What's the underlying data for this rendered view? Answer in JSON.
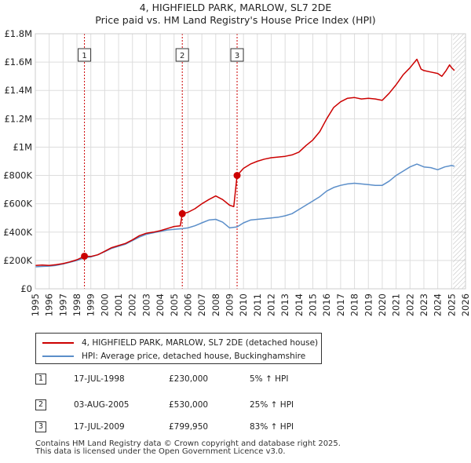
{
  "title": {
    "line1": "4, HIGHFIELD PARK, MARLOW, SL7 2DE",
    "line2": "Price paid vs. HM Land Registry's House Price Index (HPI)"
  },
  "legend": {
    "property": "4, HIGHFIELD PARK, MARLOW, SL7 2DE (detached house)",
    "hpi": "HPI: Average price, detached house, Buckinghamshire"
  },
  "sales": [
    {
      "num": "1",
      "date": "17-JUL-1998",
      "price": "£230,000",
      "hpi": "5% ↑ HPI"
    },
    {
      "num": "2",
      "date": "03-AUG-2005",
      "price": "£530,000",
      "hpi": "25% ↑ HPI"
    },
    {
      "num": "3",
      "date": "17-JUL-2009",
      "price": "£799,950",
      "hpi": "83% ↑ HPI"
    }
  ],
  "footer": {
    "line1": "Contains HM Land Registry data © Crown copyright and database right 2025.",
    "line2": "This data is licensed under the Open Government Licence v3.0."
  },
  "colors": {
    "property": "#cc0000",
    "hpi": "#5b8ec9",
    "grid": "#dddddd",
    "marker_line": "#cc0000",
    "future_hatch": "#bbbbbb"
  },
  "chart_data": {
    "type": "line",
    "xlabel": "",
    "ylabel": "",
    "xlim": [
      1995,
      2026
    ],
    "ylim": [
      0,
      1800000
    ],
    "x_ticks": [
      "1995",
      "1996",
      "1997",
      "1998",
      "1999",
      "2000",
      "2001",
      "2002",
      "2003",
      "2004",
      "2005",
      "2006",
      "2007",
      "2008",
      "2009",
      "2010",
      "2011",
      "2012",
      "2013",
      "2014",
      "2015",
      "2016",
      "2017",
      "2018",
      "2019",
      "2020",
      "2021",
      "2022",
      "2023",
      "2024",
      "2025",
      "2026"
    ],
    "y_ticks": [
      {
        "value": 0,
        "label": "£0"
      },
      {
        "value": 200000,
        "label": "£200K"
      },
      {
        "value": 400000,
        "label": "£400K"
      },
      {
        "value": 600000,
        "label": "£600K"
      },
      {
        "value": 800000,
        "label": "£800K"
      },
      {
        "value": 1000000,
        "label": "£1M"
      },
      {
        "value": 1200000,
        "label": "£1.2M"
      },
      {
        "value": 1400000,
        "label": "£1.4M"
      },
      {
        "value": 1600000,
        "label": "£1.6M"
      },
      {
        "value": 1800000,
        "label": "£1.8M"
      }
    ],
    "grid": true,
    "projection_start": 2025.1,
    "sale_markers": [
      {
        "label": "1",
        "x": 1998.54,
        "y": 230000
      },
      {
        "label": "2",
        "x": 2005.59,
        "y": 530000
      },
      {
        "label": "3",
        "x": 2009.54,
        "y": 799950
      }
    ],
    "series": [
      {
        "name": "4, HIGHFIELD PARK, MARLOW, SL7 2DE (detached house)",
        "points": [
          [
            1995.0,
            165000
          ],
          [
            1995.5,
            167000
          ],
          [
            1996.0,
            165000
          ],
          [
            1996.5,
            170000
          ],
          [
            1997.0,
            178000
          ],
          [
            1997.5,
            190000
          ],
          [
            1998.0,
            205000
          ],
          [
            1998.54,
            230000
          ],
          [
            1999.0,
            228000
          ],
          [
            1999.5,
            240000
          ],
          [
            2000.0,
            265000
          ],
          [
            2000.5,
            290000
          ],
          [
            2001.0,
            305000
          ],
          [
            2001.5,
            320000
          ],
          [
            2002.0,
            345000
          ],
          [
            2002.5,
            375000
          ],
          [
            2003.0,
            392000
          ],
          [
            2003.5,
            400000
          ],
          [
            2004.0,
            410000
          ],
          [
            2004.5,
            425000
          ],
          [
            2005.0,
            440000
          ],
          [
            2005.45,
            445000
          ],
          [
            2005.59,
            530000
          ],
          [
            2006.0,
            540000
          ],
          [
            2006.5,
            565000
          ],
          [
            2007.0,
            600000
          ],
          [
            2007.5,
            630000
          ],
          [
            2008.0,
            655000
          ],
          [
            2008.5,
            630000
          ],
          [
            2009.0,
            590000
          ],
          [
            2009.3,
            580000
          ],
          [
            2009.54,
            799950
          ],
          [
            2010.0,
            850000
          ],
          [
            2010.5,
            880000
          ],
          [
            2011.0,
            900000
          ],
          [
            2011.5,
            915000
          ],
          [
            2012.0,
            925000
          ],
          [
            2012.5,
            930000
          ],
          [
            2013.0,
            935000
          ],
          [
            2013.5,
            945000
          ],
          [
            2014.0,
            965000
          ],
          [
            2014.5,
            1010000
          ],
          [
            2015.0,
            1050000
          ],
          [
            2015.5,
            1110000
          ],
          [
            2016.0,
            1200000
          ],
          [
            2016.5,
            1280000
          ],
          [
            2017.0,
            1320000
          ],
          [
            2017.5,
            1345000
          ],
          [
            2018.0,
            1350000
          ],
          [
            2018.5,
            1340000
          ],
          [
            2019.0,
            1345000
          ],
          [
            2019.5,
            1340000
          ],
          [
            2020.0,
            1330000
          ],
          [
            2020.5,
            1380000
          ],
          [
            2021.0,
            1440000
          ],
          [
            2021.5,
            1510000
          ],
          [
            2022.0,
            1560000
          ],
          [
            2022.5,
            1620000
          ],
          [
            2022.8,
            1550000
          ],
          [
            2023.0,
            1540000
          ],
          [
            2023.5,
            1530000
          ],
          [
            2024.0,
            1520000
          ],
          [
            2024.3,
            1500000
          ],
          [
            2024.6,
            1540000
          ],
          [
            2024.85,
            1580000
          ],
          [
            2025.0,
            1560000
          ],
          [
            2025.2,
            1540000
          ]
        ]
      },
      {
        "name": "HPI: Average price, detached house, Buckinghamshire",
        "points": [
          [
            1995.0,
            155000
          ],
          [
            1995.5,
            158000
          ],
          [
            1996.0,
            160000
          ],
          [
            1996.5,
            165000
          ],
          [
            1997.0,
            175000
          ],
          [
            1997.5,
            188000
          ],
          [
            1998.0,
            200000
          ],
          [
            1998.54,
            219000
          ],
          [
            1999.0,
            225000
          ],
          [
            1999.5,
            240000
          ],
          [
            2000.0,
            262000
          ],
          [
            2000.5,
            285000
          ],
          [
            2001.0,
            300000
          ],
          [
            2001.5,
            315000
          ],
          [
            2002.0,
            340000
          ],
          [
            2002.5,
            365000
          ],
          [
            2003.0,
            385000
          ],
          [
            2003.5,
            395000
          ],
          [
            2004.0,
            405000
          ],
          [
            2004.5,
            415000
          ],
          [
            2005.0,
            420000
          ],
          [
            2005.59,
            424000
          ],
          [
            2006.0,
            430000
          ],
          [
            2006.5,
            445000
          ],
          [
            2007.0,
            465000
          ],
          [
            2007.5,
            485000
          ],
          [
            2008.0,
            490000
          ],
          [
            2008.5,
            470000
          ],
          [
            2009.0,
            430000
          ],
          [
            2009.54,
            437000
          ],
          [
            2010.0,
            465000
          ],
          [
            2010.5,
            485000
          ],
          [
            2011.0,
            490000
          ],
          [
            2011.5,
            495000
          ],
          [
            2012.0,
            500000
          ],
          [
            2012.5,
            505000
          ],
          [
            2013.0,
            515000
          ],
          [
            2013.5,
            530000
          ],
          [
            2014.0,
            560000
          ],
          [
            2014.5,
            590000
          ],
          [
            2015.0,
            620000
          ],
          [
            2015.5,
            650000
          ],
          [
            2016.0,
            690000
          ],
          [
            2016.5,
            715000
          ],
          [
            2017.0,
            730000
          ],
          [
            2017.5,
            740000
          ],
          [
            2018.0,
            745000
          ],
          [
            2018.5,
            740000
          ],
          [
            2019.0,
            735000
          ],
          [
            2019.5,
            730000
          ],
          [
            2020.0,
            730000
          ],
          [
            2020.5,
            760000
          ],
          [
            2021.0,
            800000
          ],
          [
            2021.5,
            830000
          ],
          [
            2022.0,
            860000
          ],
          [
            2022.5,
            880000
          ],
          [
            2023.0,
            860000
          ],
          [
            2023.5,
            855000
          ],
          [
            2024.0,
            840000
          ],
          [
            2024.5,
            860000
          ],
          [
            2025.0,
            870000
          ],
          [
            2025.2,
            865000
          ]
        ]
      }
    ]
  }
}
